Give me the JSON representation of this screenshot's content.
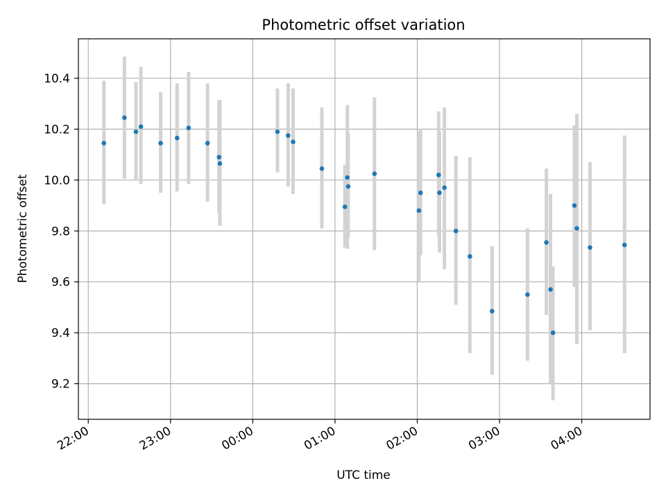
{
  "chart_data": {
    "type": "scatter",
    "title": "Photometric offset variation",
    "xlabel": "UTC time",
    "ylabel": "Photometric offset",
    "x_unit": "hours since 22:00 UTC",
    "xlim": [
      -0.12,
      6.83
    ],
    "ylim": [
      9.06,
      10.555
    ],
    "x_ticks": [
      {
        "value": 0,
        "label": "22:00"
      },
      {
        "value": 1,
        "label": "23:00"
      },
      {
        "value": 2,
        "label": "00:00"
      },
      {
        "value": 3,
        "label": "01:00"
      },
      {
        "value": 4,
        "label": "02:00"
      },
      {
        "value": 5,
        "label": "03:00"
      },
      {
        "value": 6,
        "label": "04:00"
      }
    ],
    "y_ticks": [
      {
        "value": 9.2,
        "label": "9.2"
      },
      {
        "value": 9.4,
        "label": "9.4"
      },
      {
        "value": 9.6,
        "label": "9.6"
      },
      {
        "value": 9.8,
        "label": "9.8"
      },
      {
        "value": 10.0,
        "label": "10.0"
      },
      {
        "value": 10.2,
        "label": "10.2"
      },
      {
        "value": 10.4,
        "label": "10.4"
      }
    ],
    "grid": true,
    "marker_color": "#1f77b4",
    "errorbar_color": "#d3d3d3",
    "points": [
      {
        "x": 0.19,
        "y": 10.145,
        "low": 9.905,
        "high": 10.39
      },
      {
        "x": 0.44,
        "y": 10.245,
        "low": 10.005,
        "high": 10.485
      },
      {
        "x": 0.58,
        "y": 10.19,
        "low": 10.0,
        "high": 10.385
      },
      {
        "x": 0.64,
        "y": 10.21,
        "low": 9.985,
        "high": 10.445
      },
      {
        "x": 0.88,
        "y": 10.145,
        "low": 9.95,
        "high": 10.345
      },
      {
        "x": 1.08,
        "y": 10.165,
        "low": 9.955,
        "high": 10.38
      },
      {
        "x": 1.22,
        "y": 10.205,
        "low": 9.985,
        "high": 10.425
      },
      {
        "x": 1.45,
        "y": 10.145,
        "low": 9.915,
        "high": 10.38
      },
      {
        "x": 1.59,
        "y": 10.09,
        "low": 9.87,
        "high": 10.315
      },
      {
        "x": 1.6,
        "y": 10.065,
        "low": 9.82,
        "high": 10.315
      },
      {
        "x": 2.3,
        "y": 10.19,
        "low": 10.03,
        "high": 10.36
      },
      {
        "x": 2.43,
        "y": 10.175,
        "low": 9.975,
        "high": 10.38
      },
      {
        "x": 2.49,
        "y": 10.15,
        "low": 9.945,
        "high": 10.36
      },
      {
        "x": 2.84,
        "y": 10.045,
        "low": 9.81,
        "high": 10.285
      },
      {
        "x": 3.12,
        "y": 9.895,
        "low": 9.735,
        "high": 10.06
      },
      {
        "x": 3.15,
        "y": 10.01,
        "low": 9.73,
        "high": 10.295
      },
      {
        "x": 3.16,
        "y": 9.975,
        "low": 9.775,
        "high": 10.185
      },
      {
        "x": 3.48,
        "y": 10.025,
        "low": 9.725,
        "high": 10.325
      },
      {
        "x": 4.02,
        "y": 9.88,
        "low": 9.6,
        "high": 10.19
      },
      {
        "x": 4.04,
        "y": 9.95,
        "low": 9.705,
        "high": 10.2
      },
      {
        "x": 4.26,
        "y": 10.02,
        "low": 9.78,
        "high": 10.27
      },
      {
        "x": 4.27,
        "y": 9.95,
        "low": 9.715,
        "high": 10.19
      },
      {
        "x": 4.33,
        "y": 9.97,
        "low": 9.65,
        "high": 10.285
      },
      {
        "x": 4.47,
        "y": 9.8,
        "low": 9.51,
        "high": 10.095
      },
      {
        "x": 4.64,
        "y": 9.7,
        "low": 9.32,
        "high": 10.09
      },
      {
        "x": 4.91,
        "y": 9.485,
        "low": 9.235,
        "high": 9.74
      },
      {
        "x": 5.34,
        "y": 9.55,
        "low": 9.29,
        "high": 9.81
      },
      {
        "x": 5.57,
        "y": 9.755,
        "low": 9.47,
        "high": 10.045
      },
      {
        "x": 5.62,
        "y": 9.57,
        "low": 9.2,
        "high": 9.945
      },
      {
        "x": 5.65,
        "y": 9.4,
        "low": 9.135,
        "high": 9.66
      },
      {
        "x": 5.91,
        "y": 9.9,
        "low": 9.58,
        "high": 10.215
      },
      {
        "x": 5.94,
        "y": 9.81,
        "low": 9.355,
        "high": 10.26
      },
      {
        "x": 6.1,
        "y": 9.735,
        "low": 9.41,
        "high": 10.07
      },
      {
        "x": 6.52,
        "y": 9.745,
        "low": 9.32,
        "high": 10.175
      }
    ]
  }
}
